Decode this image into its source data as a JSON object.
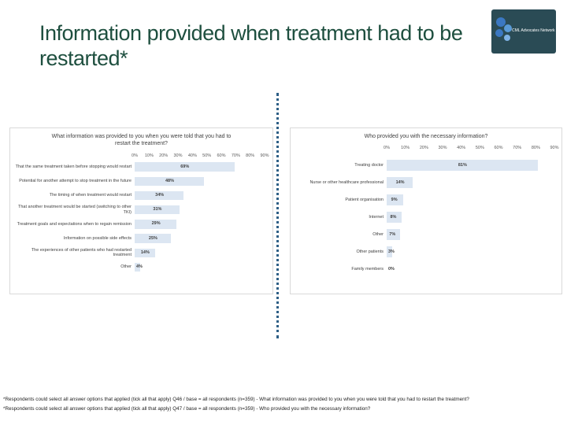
{
  "title": "Information provided when treatment had to be restarted*",
  "logo": "CML Advocates Network",
  "footnotes": [
    "*Respondents could select all answer options that applied (tick all that apply) Q46 / base = all respondents (n=359) - What information was provided to you when you were told that you had to restart the treatment?",
    "*Respondents could select all answer options that applied (tick all that apply) Q47 / base = all respondents (n=359) - Who provided you with the necessary information?"
  ],
  "chart_data": [
    {
      "type": "hbar",
      "title": "What information was provided to you when you were told that you had to restart the treatment?",
      "categories": [
        "That the same treatment taken before stopping would restart",
        "Potential for another attempt to stop treatment in the future",
        "The timing of when treatment would restart",
        "That another treatment would be started (switching to other TKI)",
        "Treatment goals and expectations when to regain remission",
        "Information on possible side effects",
        "The experiences of other patients who had restarted treatment",
        "Other"
      ],
      "values": [
        69,
        48,
        34,
        31,
        29,
        25,
        14,
        4
      ],
      "value_labels": [
        "69%",
        "48%",
        "34%",
        "31%",
        "29%",
        "25%",
        "14%",
        "4%"
      ],
      "color": "#dce6f2",
      "xlim": [
        0,
        90
      ],
      "xticks": [
        {
          "value": 0,
          "label": "0%"
        },
        {
          "value": 10,
          "label": "10%"
        },
        {
          "value": 20,
          "label": "20%"
        },
        {
          "value": 30,
          "label": "30%"
        },
        {
          "value": 40,
          "label": "40%"
        },
        {
          "value": 50,
          "label": "50%"
        },
        {
          "value": 60,
          "label": "60%"
        },
        {
          "value": 70,
          "label": "70%"
        },
        {
          "value": 80,
          "label": "80%"
        },
        {
          "value": 90,
          "label": "90%"
        }
      ],
      "grid": false
    },
    {
      "type": "hbar",
      "title": "Who provided you with the necessary information?",
      "categories": [
        "Treating doctor",
        "Nurse or other healthcare professional",
        "Patient organisation",
        "Internet",
        "Other",
        "Other patients",
        "Family members"
      ],
      "values": [
        81,
        14,
        9,
        8,
        7,
        3,
        0
      ],
      "value_labels": [
        "81%",
        "14%",
        "9%",
        "8%",
        "7%",
        "3%",
        "0%"
      ],
      "color": "#dce6f2",
      "xlim": [
        0,
        90
      ],
      "xticks": [
        {
          "value": 0,
          "label": "0%"
        },
        {
          "value": 10,
          "label": "10%"
        },
        {
          "value": 20,
          "label": "20%"
        },
        {
          "value": 30,
          "label": "30%"
        },
        {
          "value": 40,
          "label": "40%"
        },
        {
          "value": 50,
          "label": "50%"
        },
        {
          "value": 60,
          "label": "60%"
        },
        {
          "value": 70,
          "label": "70%"
        },
        {
          "value": 80,
          "label": "80%"
        },
        {
          "value": 90,
          "label": "90%"
        }
      ],
      "grid": false
    }
  ]
}
